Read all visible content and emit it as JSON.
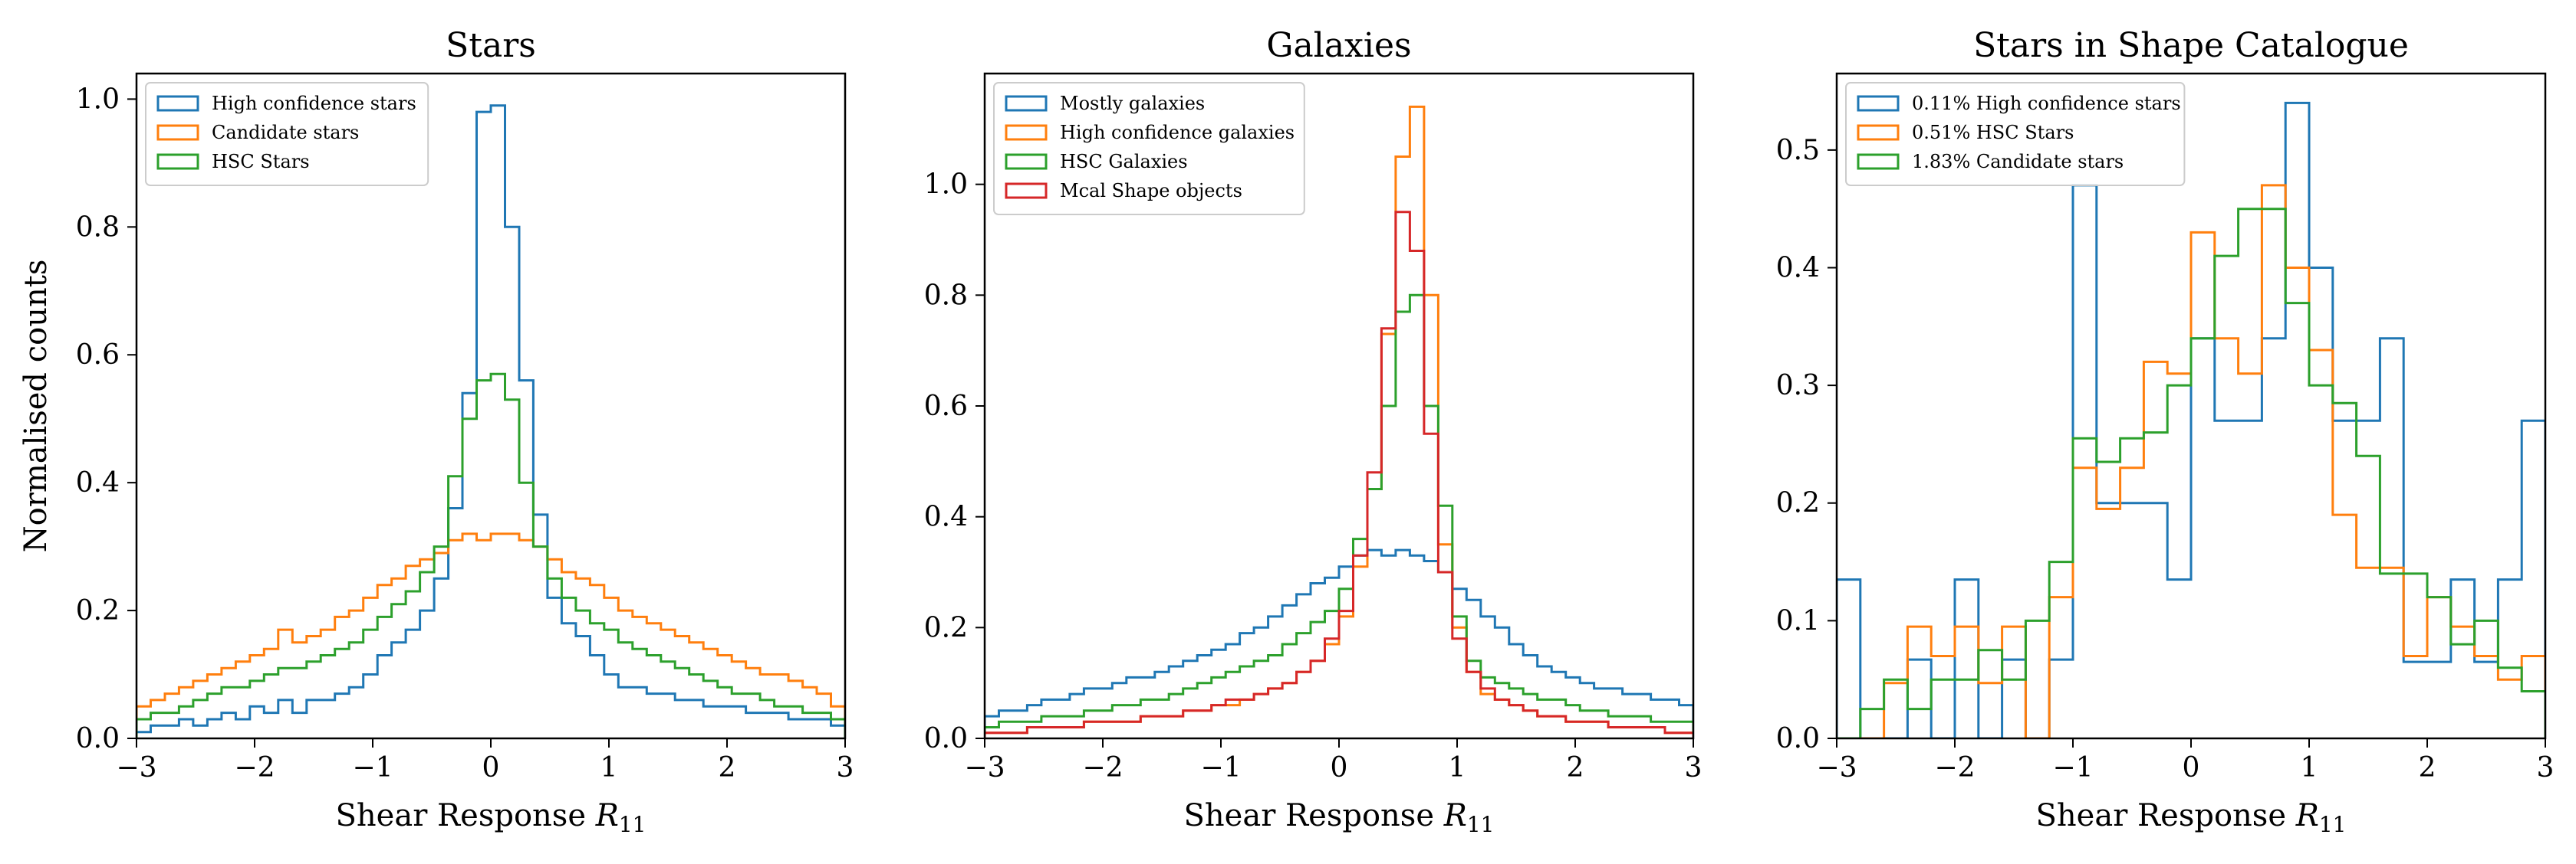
{
  "figure": {
    "colors": {
      "blue": "#1f77b4",
      "orange": "#ff7f0e",
      "green": "#2ca02c",
      "red": "#d62728"
    }
  },
  "chart_data": [
    {
      "type": "histogram-step",
      "title": "Stars",
      "xlabel": "Shear Response",
      "xlabel_math": "R",
      "xlabel_sub": "11",
      "ylabel": "Normalised counts",
      "xlim": [
        -3,
        3
      ],
      "ylim": [
        0,
        1.04
      ],
      "xticks": [
        -3,
        -2,
        -1,
        0,
        1,
        2,
        3
      ],
      "xtick_labels": [
        "−3",
        "−2",
        "−1",
        "0",
        "1",
        "2",
        "3"
      ],
      "yticks": [
        0,
        0.2,
        0.4,
        0.6,
        0.8,
        1.0
      ],
      "ytick_labels": [
        "0.0",
        "0.2",
        "0.4",
        "0.6",
        "0.8",
        "1.0"
      ],
      "legend_position": "upper-left",
      "bins": {
        "start": -3,
        "width": 0.12,
        "count": 50
      },
      "series": [
        {
          "name": "High confidence stars",
          "color": "#1f77b4",
          "values": [
            0.01,
            0.02,
            0.02,
            0.03,
            0.02,
            0.03,
            0.04,
            0.03,
            0.05,
            0.04,
            0.06,
            0.04,
            0.06,
            0.06,
            0.07,
            0.08,
            0.1,
            0.13,
            0.15,
            0.17,
            0.2,
            0.25,
            0.36,
            0.54,
            0.98,
            0.99,
            0.8,
            0.56,
            0.35,
            0.22,
            0.18,
            0.16,
            0.13,
            0.1,
            0.08,
            0.08,
            0.07,
            0.07,
            0.06,
            0.06,
            0.05,
            0.05,
            0.05,
            0.04,
            0.04,
            0.04,
            0.03,
            0.03,
            0.03,
            0.02
          ]
        },
        {
          "name": "Candidate stars",
          "color": "#ff7f0e",
          "values": [
            0.05,
            0.06,
            0.07,
            0.08,
            0.09,
            0.1,
            0.11,
            0.12,
            0.13,
            0.14,
            0.17,
            0.15,
            0.16,
            0.17,
            0.19,
            0.2,
            0.22,
            0.24,
            0.25,
            0.27,
            0.28,
            0.29,
            0.31,
            0.32,
            0.31,
            0.32,
            0.32,
            0.31,
            0.3,
            0.28,
            0.26,
            0.25,
            0.24,
            0.22,
            0.2,
            0.19,
            0.18,
            0.17,
            0.16,
            0.15,
            0.14,
            0.13,
            0.12,
            0.11,
            0.1,
            0.1,
            0.09,
            0.08,
            0.07,
            0.05
          ]
        },
        {
          "name": "HSC Stars",
          "color": "#2ca02c",
          "values": [
            0.03,
            0.04,
            0.04,
            0.05,
            0.06,
            0.07,
            0.08,
            0.08,
            0.09,
            0.1,
            0.11,
            0.11,
            0.12,
            0.13,
            0.14,
            0.15,
            0.17,
            0.19,
            0.21,
            0.23,
            0.26,
            0.3,
            0.41,
            0.5,
            0.56,
            0.57,
            0.53,
            0.4,
            0.3,
            0.25,
            0.22,
            0.2,
            0.18,
            0.17,
            0.15,
            0.14,
            0.13,
            0.12,
            0.11,
            0.1,
            0.09,
            0.08,
            0.07,
            0.07,
            0.06,
            0.05,
            0.05,
            0.04,
            0.04,
            0.03
          ]
        }
      ]
    },
    {
      "type": "histogram-step",
      "title": "Galaxies",
      "xlabel": "Shear Response",
      "xlabel_math": "R",
      "xlabel_sub": "11",
      "ylabel": "",
      "xlim": [
        -3,
        3
      ],
      "ylim": [
        0,
        1.2
      ],
      "xticks": [
        -3,
        -2,
        -1,
        0,
        1,
        2,
        3
      ],
      "xtick_labels": [
        "−3",
        "−2",
        "−1",
        "0",
        "1",
        "2",
        "3"
      ],
      "yticks": [
        0,
        0.2,
        0.4,
        0.6,
        0.8,
        1.0
      ],
      "ytick_labels": [
        "0.0",
        "0.2",
        "0.4",
        "0.6",
        "0.8",
        "1.0"
      ],
      "legend_position": "upper-left",
      "bins": {
        "start": -3,
        "width": 0.12,
        "count": 50
      },
      "series": [
        {
          "name": "Mostly galaxies",
          "color": "#1f77b4",
          "values": [
            0.04,
            0.05,
            0.05,
            0.06,
            0.07,
            0.07,
            0.08,
            0.09,
            0.09,
            0.1,
            0.11,
            0.11,
            0.12,
            0.13,
            0.14,
            0.15,
            0.16,
            0.17,
            0.19,
            0.2,
            0.22,
            0.24,
            0.26,
            0.28,
            0.29,
            0.31,
            0.33,
            0.34,
            0.33,
            0.34,
            0.33,
            0.32,
            0.3,
            0.27,
            0.25,
            0.22,
            0.2,
            0.17,
            0.15,
            0.13,
            0.12,
            0.11,
            0.1,
            0.09,
            0.09,
            0.08,
            0.08,
            0.07,
            0.07,
            0.06
          ]
        },
        {
          "name": "High confidence galaxies",
          "color": "#ff7f0e",
          "values": [
            0.01,
            0.01,
            0.01,
            0.02,
            0.02,
            0.02,
            0.02,
            0.03,
            0.03,
            0.03,
            0.03,
            0.04,
            0.04,
            0.04,
            0.05,
            0.05,
            0.06,
            0.06,
            0.07,
            0.08,
            0.09,
            0.1,
            0.12,
            0.14,
            0.17,
            0.22,
            0.31,
            0.45,
            0.73,
            1.05,
            1.14,
            0.8,
            0.35,
            0.2,
            0.12,
            0.08,
            0.07,
            0.06,
            0.05,
            0.04,
            0.04,
            0.03,
            0.03,
            0.03,
            0.02,
            0.02,
            0.02,
            0.02,
            0.01,
            0.01
          ]
        },
        {
          "name": "HSC Galaxies",
          "color": "#2ca02c",
          "values": [
            0.02,
            0.03,
            0.03,
            0.03,
            0.04,
            0.04,
            0.04,
            0.05,
            0.05,
            0.06,
            0.06,
            0.07,
            0.07,
            0.08,
            0.09,
            0.1,
            0.11,
            0.12,
            0.13,
            0.14,
            0.15,
            0.17,
            0.19,
            0.21,
            0.23,
            0.27,
            0.36,
            0.45,
            0.6,
            0.77,
            0.8,
            0.6,
            0.42,
            0.22,
            0.14,
            0.11,
            0.1,
            0.09,
            0.08,
            0.07,
            0.07,
            0.06,
            0.05,
            0.05,
            0.04,
            0.04,
            0.04,
            0.03,
            0.03,
            0.03
          ]
        },
        {
          "name": "Mcal Shape objects",
          "color": "#d62728",
          "values": [
            0.01,
            0.01,
            0.01,
            0.02,
            0.02,
            0.02,
            0.02,
            0.03,
            0.03,
            0.03,
            0.03,
            0.04,
            0.04,
            0.04,
            0.05,
            0.05,
            0.06,
            0.07,
            0.07,
            0.08,
            0.09,
            0.1,
            0.12,
            0.14,
            0.18,
            0.23,
            0.33,
            0.48,
            0.74,
            0.95,
            0.88,
            0.55,
            0.3,
            0.18,
            0.12,
            0.09,
            0.07,
            0.06,
            0.05,
            0.04,
            0.04,
            0.03,
            0.03,
            0.03,
            0.02,
            0.02,
            0.02,
            0.02,
            0.01,
            0.01
          ]
        }
      ]
    },
    {
      "type": "histogram-step",
      "title": "Stars in Shape Catalogue",
      "xlabel": "Shear Response",
      "xlabel_math": "R",
      "xlabel_sub": "11",
      "ylabel": "",
      "xlim": [
        -3,
        3
      ],
      "ylim": [
        0,
        0.565
      ],
      "xticks": [
        -3,
        -2,
        -1,
        0,
        1,
        2,
        3
      ],
      "xtick_labels": [
        "−3",
        "−2",
        "−1",
        "0",
        "1",
        "2",
        "3"
      ],
      "yticks": [
        0,
        0.1,
        0.2,
        0.3,
        0.4,
        0.5
      ],
      "ytick_labels": [
        "0.0",
        "0.1",
        "0.2",
        "0.3",
        "0.4",
        "0.5"
      ],
      "legend_position": "upper-left",
      "bins": {
        "start": -3,
        "width": 0.2,
        "count": 30
      },
      "series": [
        {
          "name": "0.11% High confidence stars",
          "color": "#1f77b4",
          "values": [
            0.135,
            0.0,
            0.0,
            0.067,
            0.0,
            0.135,
            0.0,
            0.067,
            0.0,
            0.067,
            0.47,
            0.2,
            0.2,
            0.2,
            0.135,
            0.34,
            0.27,
            0.27,
            0.34,
            0.54,
            0.4,
            0.27,
            0.27,
            0.34,
            0.065,
            0.065,
            0.135,
            0.065,
            0.135,
            0.27
          ]
        },
        {
          "name": "0.51% HSC Stars",
          "color": "#ff7f0e",
          "values": [
            0.0,
            0.0,
            0.047,
            0.095,
            0.07,
            0.095,
            0.047,
            0.095,
            0.0,
            0.12,
            0.23,
            0.195,
            0.23,
            0.32,
            0.31,
            0.43,
            0.34,
            0.31,
            0.47,
            0.4,
            0.33,
            0.19,
            0.145,
            0.145,
            0.07,
            0.12,
            0.095,
            0.07,
            0.05,
            0.07
          ]
        },
        {
          "name": "1.83% Candidate stars",
          "color": "#2ca02c",
          "values": [
            0.0,
            0.025,
            0.05,
            0.025,
            0.05,
            0.05,
            0.075,
            0.05,
            0.1,
            0.15,
            0.255,
            0.235,
            0.255,
            0.26,
            0.3,
            0.34,
            0.41,
            0.45,
            0.45,
            0.37,
            0.3,
            0.285,
            0.24,
            0.14,
            0.14,
            0.12,
            0.08,
            0.1,
            0.06,
            0.04
          ]
        }
      ]
    }
  ]
}
